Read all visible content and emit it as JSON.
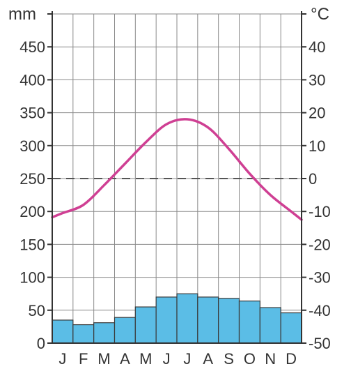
{
  "chart_data": {
    "type": "bar",
    "categories": [
      "J",
      "F",
      "M",
      "A",
      "M",
      "J",
      "J",
      "A",
      "S",
      "O",
      "N",
      "D"
    ],
    "series": [
      {
        "type": "bar",
        "axis": "left",
        "values": [
          35,
          28,
          31,
          39,
          55,
          70,
          75,
          70,
          68,
          64,
          54,
          46
        ]
      },
      {
        "type": "line",
        "axis": "right",
        "values": [
          -10.5,
          -8,
          -2,
          4.5,
          11,
          16.5,
          18,
          15.5,
          9,
          1.5,
          -5,
          -10
        ]
      }
    ],
    "left_axis": {
      "unit": "mm",
      "ylim": [
        0,
        500
      ],
      "ticks": [
        "0",
        "50",
        "100",
        "150",
        "200",
        "250",
        "300",
        "350",
        "400",
        "450"
      ]
    },
    "right_axis": {
      "unit": "°C",
      "ylim": [
        -50,
        50
      ],
      "ticks": [
        "-50",
        "-40",
        "-30",
        "-20",
        "-10",
        "0",
        "10",
        "20",
        "30",
        "40"
      ]
    },
    "reference_line": {
      "axis": "right",
      "value": 0,
      "style": "dashed"
    },
    "grid": true,
    "colors": {
      "bar_fill": "#5bbde6",
      "bar_stroke": "#3a3a3a",
      "line": "#cf3f93",
      "grid": "#8a8a8a",
      "axis": "#333333",
      "dashed": "#555555"
    }
  }
}
